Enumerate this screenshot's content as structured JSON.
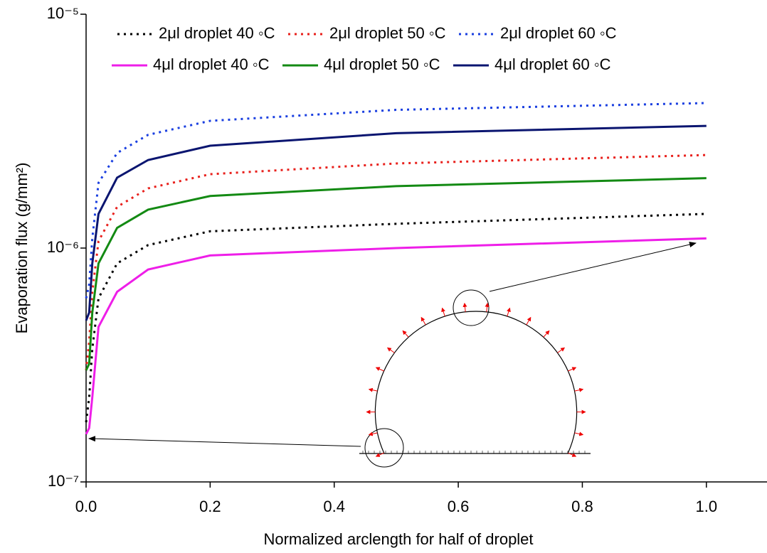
{
  "chart_data": {
    "type": "line",
    "x_label": "Normalized arclength for half of droplet",
    "y_label": "Evaporation flux (g/mm²)",
    "log_y": true,
    "legend": "top",
    "xlim": [
      0,
      1.1
    ],
    "xticks": [
      {
        "value": 0,
        "label": "0.0"
      },
      0.2,
      0.4,
      0.6,
      0.8,
      {
        "value": 1,
        "label": "1.0"
      }
    ],
    "ylim": [
      1e-07,
      1e-05
    ],
    "yticks": [
      {
        "value": 1e-07,
        "label": "10⁻⁷"
      },
      {
        "value": 1e-06,
        "label": "10⁻⁶"
      },
      {
        "value": 1e-05,
        "label": "10⁻⁵"
      }
    ],
    "x": [
      0,
      0.005,
      0.01,
      0.02,
      0.05,
      0.1,
      0.2,
      0.5,
      1.0
    ],
    "series": [
      {
        "name": "2μl droplet 40 ◦C",
        "color": "#000000",
        "style": "dotted",
        "values": [
          1.8e-07,
          2.3e-07,
          3.7e-07,
          6.1e-07,
          8.6e-07,
          1.03e-06,
          1.18e-06,
          1.27e-06,
          1.4e-06
        ]
      },
      {
        "name": "2μl droplet 50 ◦C",
        "color": "#e8201c",
        "style": "dotted",
        "values": [
          3e-07,
          4e-07,
          6.5e-07,
          1.07e-06,
          1.5e-06,
          1.8e-06,
          2.07e-06,
          2.3e-06,
          2.5e-06
        ]
      },
      {
        "name": "2μl droplet 60 ◦C",
        "color": "#1a3fe0",
        "style": "dotted",
        "values": [
          6.1e-07,
          7e-07,
          1.1e-06,
          1.9e-06,
          2.55e-06,
          3.05e-06,
          3.5e-06,
          3.9e-06,
          4.17e-06
        ]
      },
      {
        "name": "4μl droplet 40 ◦C",
        "color": "#ee1ee8",
        "style": "solid",
        "values": [
          1.6e-07,
          1.7e-07,
          2.3e-07,
          4.6e-07,
          6.5e-07,
          8.1e-07,
          9.3e-07,
          1e-06,
          1.1e-06
        ]
      },
      {
        "name": "4μl droplet 50 ◦C",
        "color": "#138a13",
        "style": "solid",
        "values": [
          3e-07,
          3.2e-07,
          5.3e-07,
          8.6e-07,
          1.22e-06,
          1.46e-06,
          1.67e-06,
          1.84e-06,
          1.99e-06
        ]
      },
      {
        "name": "4μl droplet 60 ◦C",
        "color": "#0a1570",
        "style": "solid",
        "values": [
          4.9e-07,
          5.3e-07,
          8.6e-07,
          1.4e-06,
          2e-06,
          2.38e-06,
          2.74e-06,
          3.1e-06,
          3.33e-06
        ]
      }
    ]
  }
}
